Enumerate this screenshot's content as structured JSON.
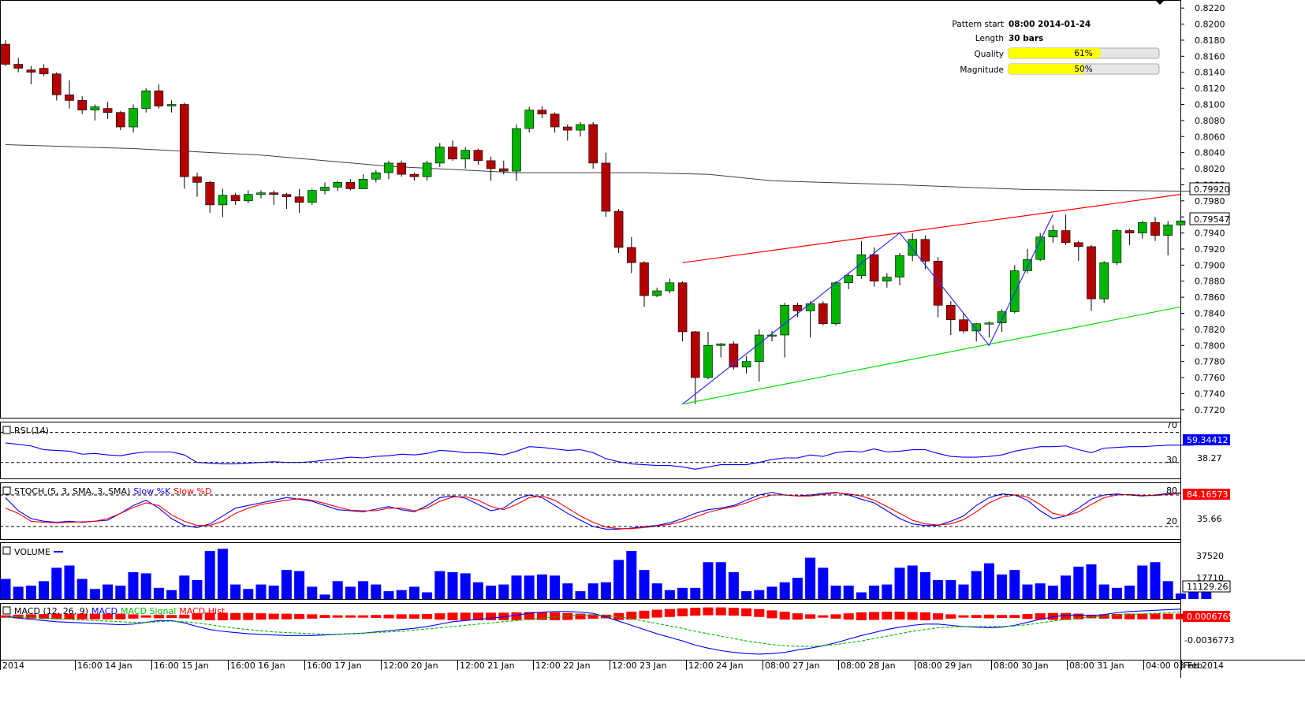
{
  "info_panel": {
    "pattern_start_label": "Pattern start",
    "pattern_start_value": "08:00 2014-01-24",
    "length_label": "Length",
    "length_value": "30 bars",
    "quality_label": "Quality",
    "quality_value": "61%",
    "quality_fraction": 0.61,
    "magnitude_label": "Magnitude",
    "magnitude_value": "50%",
    "magnitude_fraction": 0.5
  },
  "price_axis": {
    "ticks": [
      "0.8220",
      "0.8200",
      "0.8180",
      "0.8160",
      "0.8140",
      "0.8120",
      "0.8100",
      "0.8080",
      "0.8060",
      "0.8040",
      "0.8020",
      "0.8000",
      "0.7980",
      "0.7960",
      "0.7940",
      "0.7920",
      "0.7900",
      "0.7880",
      "0.7860",
      "0.7840",
      "0.7820",
      "0.7800",
      "0.7780",
      "0.7760",
      "0.7740",
      "0.7720"
    ],
    "ma_badge": "0.79920",
    "last_badge": "0.79547",
    "range": [
      0.771,
      0.823
    ]
  },
  "time_axis": [
    "2014",
    "16:00 14 Jan",
    "16:00 15 Jan",
    "16:00 16 Jan",
    "16:00 17 Jan",
    "12:00 20 Jan",
    "12:00 21 Jan",
    "12:00 22 Jan",
    "12:00 23 Jan",
    "12:00 24 Jan",
    "08:00 27 Jan",
    "08:00 28 Jan",
    "08:00 29 Jan",
    "08:00 30 Jan",
    "08:00 31 Jan",
    "04:00 03 Feb",
    "Feb 2014"
  ],
  "panels": {
    "rsi": {
      "title": "RSI (14)",
      "level_high": "70",
      "level_low": "30",
      "value_badge": "59.34412",
      "axis_value": "38.27"
    },
    "stoch": {
      "title": "STOCH (5, 3, SMA, 3, SMA)",
      "k_label": "Slow %K",
      "d_label": "Slow %D",
      "level_high": "80",
      "level_low": "20",
      "value_badge": "84.16573",
      "axis_value": "35.66"
    },
    "volume": {
      "title": "VOLUME",
      "axis_value": "37520",
      "axis_value2": "17710",
      "value_badge": "11129.26"
    },
    "macd": {
      "title": "MACD (12, 26, 9)",
      "macd_label": "MACD",
      "signal_label": "MACD Signal",
      "hist_label": "MACD Hist",
      "value_badge": "0.0006765",
      "axis_value": "-0.0036773"
    }
  },
  "colors": {
    "bull": "#00b400",
    "bear": "#b40000",
    "ma": "#404040",
    "resistance": "#ff0000",
    "support": "#00e000",
    "zigzag": "#3030ff",
    "badge_bg": "#ff0000",
    "info_bar": "#ffff00"
  },
  "chart_data": {
    "type": "candlestick",
    "ohlc": [
      [
        0.8175,
        0.818,
        0.8148,
        0.815
      ],
      [
        0.815,
        0.8158,
        0.814,
        0.8145
      ],
      [
        0.8143,
        0.8148,
        0.8125,
        0.814
      ],
      [
        0.8145,
        0.815,
        0.8135,
        0.8138
      ],
      [
        0.8138,
        0.814,
        0.8105,
        0.8112
      ],
      [
        0.8112,
        0.813,
        0.8095,
        0.8105
      ],
      [
        0.8105,
        0.811,
        0.8088,
        0.8093
      ],
      [
        0.8093,
        0.81,
        0.808,
        0.8097
      ],
      [
        0.8095,
        0.8103,
        0.8082,
        0.809
      ],
      [
        0.809,
        0.8092,
        0.8068,
        0.8072
      ],
      [
        0.8072,
        0.81,
        0.8065,
        0.8095
      ],
      [
        0.8095,
        0.812,
        0.809,
        0.8117
      ],
      [
        0.8117,
        0.8125,
        0.8095,
        0.8098
      ],
      [
        0.8098,
        0.8105,
        0.809,
        0.81
      ],
      [
        0.81,
        0.8102,
        0.7995,
        0.801
      ],
      [
        0.801,
        0.8015,
        0.7985,
        0.8003
      ],
      [
        0.8003,
        0.8005,
        0.7965,
        0.7975
      ],
      [
        0.7975,
        0.7995,
        0.796,
        0.7987
      ],
      [
        0.7987,
        0.799,
        0.7975,
        0.798
      ],
      [
        0.798,
        0.7993,
        0.7977,
        0.7988
      ],
      [
        0.7988,
        0.7993,
        0.7983,
        0.799
      ],
      [
        0.799,
        0.7993,
        0.7975,
        0.7988
      ],
      [
        0.7988,
        0.799,
        0.797,
        0.7985
      ],
      [
        0.7985,
        0.7995,
        0.7965,
        0.7978
      ],
      [
        0.7978,
        0.7995,
        0.7975,
        0.7993
      ],
      [
        0.7993,
        0.8003,
        0.7988,
        0.7997
      ],
      [
        0.7997,
        0.8005,
        0.7992,
        0.8003
      ],
      [
        0.8003,
        0.8007,
        0.7993,
        0.7995
      ],
      [
        0.7995,
        0.8013,
        0.7995,
        0.8007
      ],
      [
        0.8007,
        0.8018,
        0.8003,
        0.8015
      ],
      [
        0.8015,
        0.803,
        0.8007,
        0.8027
      ],
      [
        0.8027,
        0.803,
        0.801,
        0.8013
      ],
      [
        0.8013,
        0.8015,
        0.8005,
        0.801
      ],
      [
        0.801,
        0.803,
        0.8005,
        0.8027
      ],
      [
        0.8027,
        0.8052,
        0.8022,
        0.8047
      ],
      [
        0.8047,
        0.8055,
        0.803,
        0.8032
      ],
      [
        0.8032,
        0.8047,
        0.802,
        0.8043
      ],
      [
        0.8043,
        0.8045,
        0.8025,
        0.803
      ],
      [
        0.803,
        0.8035,
        0.8005,
        0.802
      ],
      [
        0.802,
        0.803,
        0.8013,
        0.8017
      ],
      [
        0.8017,
        0.8075,
        0.8005,
        0.807
      ],
      [
        0.807,
        0.8097,
        0.8065,
        0.8093
      ],
      [
        0.8093,
        0.8098,
        0.8083,
        0.8088
      ],
      [
        0.8088,
        0.809,
        0.8065,
        0.8072
      ],
      [
        0.8072,
        0.8075,
        0.8055,
        0.8068
      ],
      [
        0.8068,
        0.8078,
        0.806,
        0.8075
      ],
      [
        0.8075,
        0.8078,
        0.802,
        0.8027
      ],
      [
        0.8027,
        0.804,
        0.796,
        0.7967
      ],
      [
        0.7967,
        0.797,
        0.7915,
        0.7922
      ],
      [
        0.7922,
        0.7935,
        0.789,
        0.7903
      ],
      [
        0.7903,
        0.7905,
        0.7848,
        0.7862
      ],
      [
        0.7862,
        0.7872,
        0.786,
        0.7868
      ],
      [
        0.7868,
        0.7883,
        0.7865,
        0.7878
      ],
      [
        0.7878,
        0.788,
        0.7805,
        0.7817
      ],
      [
        0.7817,
        0.7818,
        0.7727,
        0.776
      ],
      [
        0.776,
        0.7817,
        0.7758,
        0.78
      ],
      [
        0.78,
        0.7803,
        0.7785,
        0.7802
      ],
      [
        0.7802,
        0.7805,
        0.777,
        0.7773
      ],
      [
        0.7773,
        0.7787,
        0.7765,
        0.778
      ],
      [
        0.778,
        0.782,
        0.7755,
        0.7813
      ],
      [
        0.7813,
        0.7818,
        0.7805,
        0.7813
      ],
      [
        0.7813,
        0.7853,
        0.7785,
        0.785
      ],
      [
        0.785,
        0.7853,
        0.7835,
        0.7843
      ],
      [
        0.7843,
        0.7855,
        0.781,
        0.7852
      ],
      [
        0.7852,
        0.7855,
        0.7825,
        0.7827
      ],
      [
        0.7827,
        0.788,
        0.7825,
        0.7878
      ],
      [
        0.7878,
        0.789,
        0.787,
        0.7887
      ],
      [
        0.7887,
        0.793,
        0.7883,
        0.7913
      ],
      [
        0.7913,
        0.7922,
        0.7873,
        0.788
      ],
      [
        0.788,
        0.789,
        0.7872,
        0.7885
      ],
      [
        0.7885,
        0.7915,
        0.7875,
        0.7912
      ],
      [
        0.7912,
        0.794,
        0.7905,
        0.7932
      ],
      [
        0.7932,
        0.7937,
        0.7895,
        0.7905
      ],
      [
        0.7905,
        0.791,
        0.7835,
        0.785
      ],
      [
        0.785,
        0.7855,
        0.7813,
        0.7832
      ],
      [
        0.7832,
        0.784,
        0.7815,
        0.7818
      ],
      [
        0.7818,
        0.7828,
        0.7805,
        0.7827
      ],
      [
        0.7827,
        0.783,
        0.781,
        0.7828
      ],
      [
        0.7828,
        0.7845,
        0.7817,
        0.7842
      ],
      [
        0.7842,
        0.79,
        0.784,
        0.7893
      ],
      [
        0.7893,
        0.792,
        0.789,
        0.7907
      ],
      [
        0.7907,
        0.794,
        0.7905,
        0.7935
      ],
      [
        0.7935,
        0.795,
        0.7928,
        0.7943
      ],
      [
        0.7943,
        0.7963,
        0.7925,
        0.7928
      ],
      [
        0.7928,
        0.793,
        0.7905,
        0.7923
      ],
      [
        0.7923,
        0.7925,
        0.7843,
        0.7858
      ],
      [
        0.7858,
        0.7905,
        0.7853,
        0.7903
      ],
      [
        0.7903,
        0.7945,
        0.79,
        0.7943
      ],
      [
        0.7943,
        0.7945,
        0.7925,
        0.794
      ],
      [
        0.794,
        0.7955,
        0.7933,
        0.7953
      ],
      [
        0.7953,
        0.796,
        0.793,
        0.7937
      ],
      [
        0.7937,
        0.7955,
        0.7912,
        0.795
      ],
      [
        0.795,
        0.796,
        0.7933,
        0.7955
      ]
    ],
    "ma_line": [
      [
        0,
        0.805
      ],
      [
        10,
        0.8045
      ],
      [
        20,
        0.8037
      ],
      [
        30,
        0.8023
      ],
      [
        40,
        0.8015
      ],
      [
        50,
        0.8015
      ],
      [
        55,
        0.8013
      ],
      [
        60,
        0.8005
      ],
      [
        70,
        0.8
      ],
      [
        80,
        0.7994
      ],
      [
        93,
        0.7992
      ]
    ],
    "resistance_line": [
      [
        53,
        0.7903
      ],
      [
        92,
        0.7988
      ]
    ],
    "support_line": [
      [
        53,
        0.7727
      ],
      [
        92,
        0.7848
      ]
    ],
    "zigzag": [
      [
        53,
        0.7727
      ],
      [
        70,
        0.794
      ],
      [
        77,
        0.78
      ],
      [
        82,
        0.7963
      ]
    ],
    "rsi": [
      56,
      54,
      52,
      47,
      46,
      45,
      41,
      42,
      40,
      39,
      42,
      44,
      44,
      44,
      40,
      30,
      29,
      28,
      28,
      29,
      30,
      31,
      30,
      30,
      31,
      33,
      35,
      37,
      36,
      38,
      39,
      41,
      40,
      42,
      46,
      45,
      43,
      43,
      42,
      40,
      45,
      51,
      50,
      48,
      46,
      47,
      43,
      35,
      31,
      28,
      27,
      26,
      26,
      24,
      21,
      24,
      27,
      27,
      27,
      30,
      34,
      36,
      36,
      40,
      38,
      43,
      45,
      44,
      48,
      44,
      45,
      47,
      47,
      42,
      38,
      37,
      37,
      38,
      40,
      45,
      48,
      51,
      51,
      52,
      47,
      43,
      49,
      50,
      51,
      51,
      52,
      53,
      53,
      53
    ],
    "stoch_k": [
      75,
      50,
      35,
      30,
      28,
      30,
      28,
      30,
      32,
      45,
      60,
      70,
      55,
      35,
      22,
      18,
      25,
      40,
      55,
      60,
      65,
      70,
      75,
      72,
      68,
      60,
      52,
      50,
      48,
      53,
      58,
      52,
      48,
      60,
      75,
      78,
      74,
      62,
      50,
      55,
      72,
      80,
      75,
      60,
      45,
      32,
      20,
      15,
      15,
      17,
      20,
      22,
      27,
      35,
      45,
      52,
      55,
      60,
      70,
      80,
      85,
      80,
      78,
      80,
      83,
      85,
      80,
      72,
      65,
      50,
      35,
      25,
      22,
      22,
      30,
      40,
      60,
      75,
      82,
      80,
      70,
      50,
      35,
      40,
      55,
      72,
      80,
      82,
      80,
      78,
      80,
      83,
      84
    ],
    "stoch_d": [
      55,
      45,
      30,
      28,
      27,
      28,
      29,
      30,
      35,
      45,
      56,
      65,
      60,
      42,
      30,
      22,
      22,
      30,
      45,
      55,
      62,
      66,
      70,
      73,
      70,
      64,
      57,
      51,
      50,
      50,
      55,
      55,
      50,
      55,
      68,
      76,
      77,
      70,
      58,
      52,
      62,
      75,
      78,
      70,
      55,
      40,
      28,
      19,
      16,
      16,
      18,
      21,
      24,
      30,
      38,
      47,
      53,
      58,
      65,
      74,
      80,
      80,
      78,
      78,
      81,
      84,
      82,
      78,
      70,
      58,
      45,
      32,
      25,
      23,
      25,
      33,
      48,
      65,
      76,
      80,
      76,
      62,
      45,
      40,
      48,
      62,
      75,
      80,
      81,
      79,
      79,
      81,
      83
    ],
    "volume": [
      18000,
      11000,
      12000,
      16000,
      28000,
      30000,
      18000,
      9000,
      13000,
      12000,
      24000,
      23000,
      10000,
      8000,
      21000,
      17000,
      43000,
      45000,
      13000,
      9000,
      13000,
      12000,
      26000,
      25000,
      11000,
      4000,
      16000,
      11000,
      16000,
      13000,
      7000,
      8000,
      11000,
      6000,
      25000,
      24000,
      23000,
      15000,
      12000,
      13000,
      21000,
      21000,
      22000,
      21000,
      14000,
      7000,
      14000,
      15000,
      35000,
      43000,
      26000,
      14000,
      8000,
      10000,
      10000,
      33000,
      33000,
      24000,
      7000,
      8000,
      11000,
      15000,
      19000,
      37000,
      28000,
      12000,
      12000,
      6000,
      12000,
      13000,
      28000,
      30000,
      24000,
      17000,
      17000,
      13000,
      25000,
      32000,
      22000,
      26000,
      13000,
      14000,
      12000,
      21000,
      29000,
      31000,
      13000,
      10000,
      12000,
      30000,
      33000,
      16000,
      5000,
      10000,
      11000,
      11000
    ],
    "macd": [
      -0.0005,
      -0.0008,
      -0.001,
      -0.0012,
      -0.0014,
      -0.0015,
      -0.0016,
      -0.0017,
      -0.0018,
      -0.0019,
      -0.0018,
      -0.0015,
      -0.0012,
      -0.0012,
      -0.0016,
      -0.0022,
      -0.0027,
      -0.003,
      -0.0032,
      -0.0034,
      -0.0035,
      -0.0036,
      -0.0037,
      -0.0037,
      -0.0037,
      -0.0036,
      -0.0035,
      -0.0034,
      -0.0033,
      -0.0031,
      -0.0029,
      -0.0027,
      -0.0025,
      -0.0022,
      -0.0018,
      -0.0014,
      -0.0012,
      -0.001,
      -0.0008,
      -0.0006,
      -0.0003,
      0.0,
      0.0002,
      0.0003,
      0.0003,
      0.0002,
      0.0,
      -0.0006,
      -0.0013,
      -0.002,
      -0.0027,
      -0.0034,
      -0.004,
      -0.0046,
      -0.0053,
      -0.0058,
      -0.0062,
      -0.0065,
      -0.0067,
      -0.0068,
      -0.0067,
      -0.0065,
      -0.0061,
      -0.0058,
      -0.0054,
      -0.0049,
      -0.0043,
      -0.0037,
      -0.0032,
      -0.0027,
      -0.0023,
      -0.002,
      -0.0018,
      -0.0018,
      -0.002,
      -0.0022,
      -0.0023,
      -0.0024,
      -0.0023,
      -0.002,
      -0.0015,
      -0.001,
      -0.0006,
      -0.0003,
      -0.0003,
      -0.0004,
      -0.0002,
      0.0001,
      0.0003,
      0.0004,
      0.0005,
      0.0006,
      0.0007
    ],
    "macd_signal": [
      -0.0005,
      -0.0006,
      -0.0007,
      -0.0008,
      -0.0009,
      -0.001,
      -0.0011,
      -0.0012,
      -0.0013,
      -0.0014,
      -0.0015,
      -0.0015,
      -0.0014,
      -0.0013,
      -0.0014,
      -0.0016,
      -0.0019,
      -0.0022,
      -0.0025,
      -0.0027,
      -0.0029,
      -0.0031,
      -0.0032,
      -0.0033,
      -0.0034,
      -0.0035,
      -0.0035,
      -0.0034,
      -0.0033,
      -0.0032,
      -0.0031,
      -0.003,
      -0.0028,
      -0.0026,
      -0.0024,
      -0.0022,
      -0.002,
      -0.0018,
      -0.0016,
      -0.0014,
      -0.0012,
      -0.001,
      -0.0008,
      -0.0006,
      -0.0004,
      -0.0003,
      -0.0003,
      -0.0004,
      -0.0006,
      -0.0009,
      -0.0013,
      -0.0017,
      -0.0021,
      -0.0025,
      -0.003,
      -0.0034,
      -0.0038,
      -0.0042,
      -0.0046,
      -0.0049,
      -0.0052,
      -0.0054,
      -0.0055,
      -0.0055,
      -0.0054,
      -0.0052,
      -0.0049,
      -0.0046,
      -0.0042,
      -0.0038,
      -0.0034,
      -0.003,
      -0.0027,
      -0.0024,
      -0.0023,
      -0.0022,
      -0.0022,
      -0.0022,
      -0.0022,
      -0.0021,
      -0.0019,
      -0.0016,
      -0.0013,
      -0.001,
      -0.0008,
      -0.0006,
      -0.0005,
      -0.0003,
      -0.0002,
      -0.0001,
      0.0,
      0.0001,
      0.0002
    ]
  }
}
